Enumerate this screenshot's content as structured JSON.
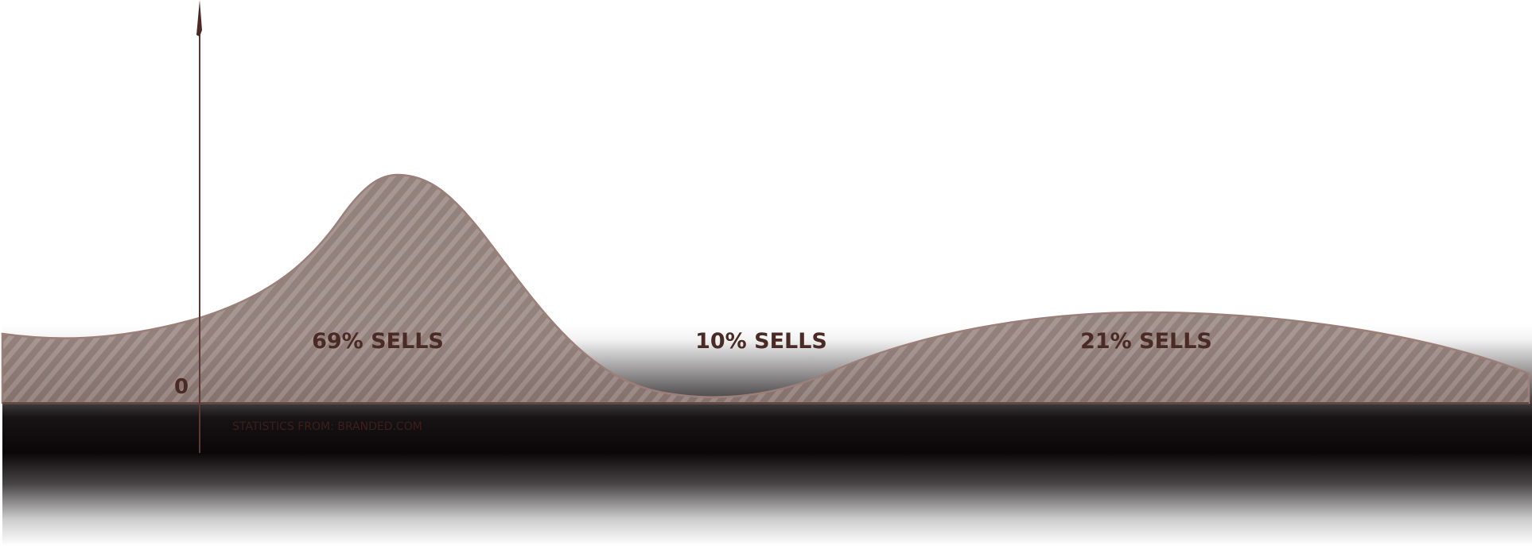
{
  "chart_data": {
    "type": "area",
    "segments": [
      {
        "label": "69% SELLS",
        "value": 69
      },
      {
        "label": "10% SELLS",
        "value": 10
      },
      {
        "label": "21% SELLS",
        "value": 21
      }
    ],
    "y_axis_tick": "0",
    "source_note": "STATISTICS FROM: BRANDED.COM",
    "colors": {
      "area_fill": "#8a7671",
      "area_stroke": "#9b7f78",
      "stripe": "#a08e89",
      "axis": "#5a3a34",
      "label": "#4a2a24",
      "band_dark": "#0b0709"
    }
  }
}
